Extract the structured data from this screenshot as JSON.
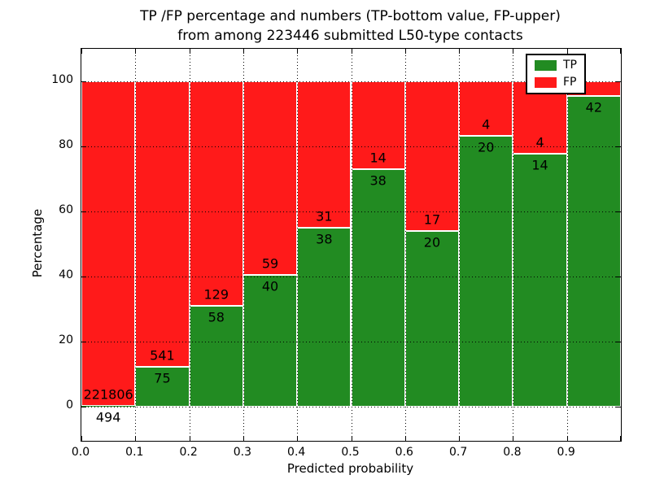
{
  "figure": {
    "title_line1": "TP /FP percentage and numbers (TP-bottom value, FP-upper)",
    "title_line2": "from among 223446 submitted L50-type contacts",
    "background_color": "#ffffff"
  },
  "chart_data": {
    "type": "bar",
    "stacked": true,
    "title": "TP /FP percentage and numbers (TP-bottom value, FP-upper) from among 223446 submitted L50-type contacts",
    "xlabel": "Predicted probability",
    "ylabel": "Percentage",
    "xlim": [
      0.0,
      1.0
    ],
    "ylim": [
      -10.5,
      110
    ],
    "bin_width": 0.1,
    "grid": "dotted black, vertical every 0.1 and horizontal every 20",
    "x_tick_labels": [
      "0.0",
      "0.1",
      "0.2",
      "0.3",
      "0.4",
      "0.5",
      "0.6",
      "0.7",
      "0.8",
      "0.9"
    ],
    "y_ticks": [
      0,
      20,
      40,
      60,
      80,
      100
    ],
    "y_tick_labels": [
      "0",
      "20",
      "40",
      "60",
      "80",
      "100"
    ],
    "colors": {
      "tp": "#228B22",
      "fp": "#ff1a1a",
      "bar_edge": "#ffffff"
    },
    "legend": {
      "position": "upper right",
      "entries": [
        {
          "label": "TP",
          "color": "#228B22"
        },
        {
          "label": "FP",
          "color": "#ff1a1a"
        }
      ]
    },
    "categories": [
      "0.0-0.1",
      "0.1-0.2",
      "0.2-0.3",
      "0.3-0.4",
      "0.4-0.5",
      "0.5-0.6",
      "0.6-0.7",
      "0.7-0.8",
      "0.8-0.9",
      "0.9-1.0"
    ],
    "series": [
      {
        "name": "TP",
        "position": "bottom",
        "counts": [
          494,
          75,
          58,
          40,
          38,
          38,
          20,
          20,
          14,
          42
        ],
        "percentages": [
          0.22,
          12.18,
          31.02,
          40.4,
          55.07,
          73.08,
          54.05,
          83.33,
          77.78,
          95.45
        ]
      },
      {
        "name": "FP",
        "position": "top",
        "counts": [
          221806,
          541,
          129,
          59,
          31,
          14,
          17,
          4,
          4,
          null
        ],
        "percentages": [
          99.78,
          87.82,
          68.98,
          59.6,
          44.93,
          26.92,
          45.95,
          16.67,
          22.22,
          4.55
        ]
      }
    ],
    "annotations": {
      "fp_labels": [
        "221806",
        "541",
        "129",
        "59",
        "31",
        "14",
        "17",
        "4",
        "4",
        ""
      ],
      "tp_labels": [
        "494",
        "75",
        "58",
        "40",
        "38",
        "38",
        "20",
        "20",
        "14",
        "42"
      ],
      "placement": "FP label above TP/FP boundary, TP label below boundary, centered on bar"
    }
  }
}
